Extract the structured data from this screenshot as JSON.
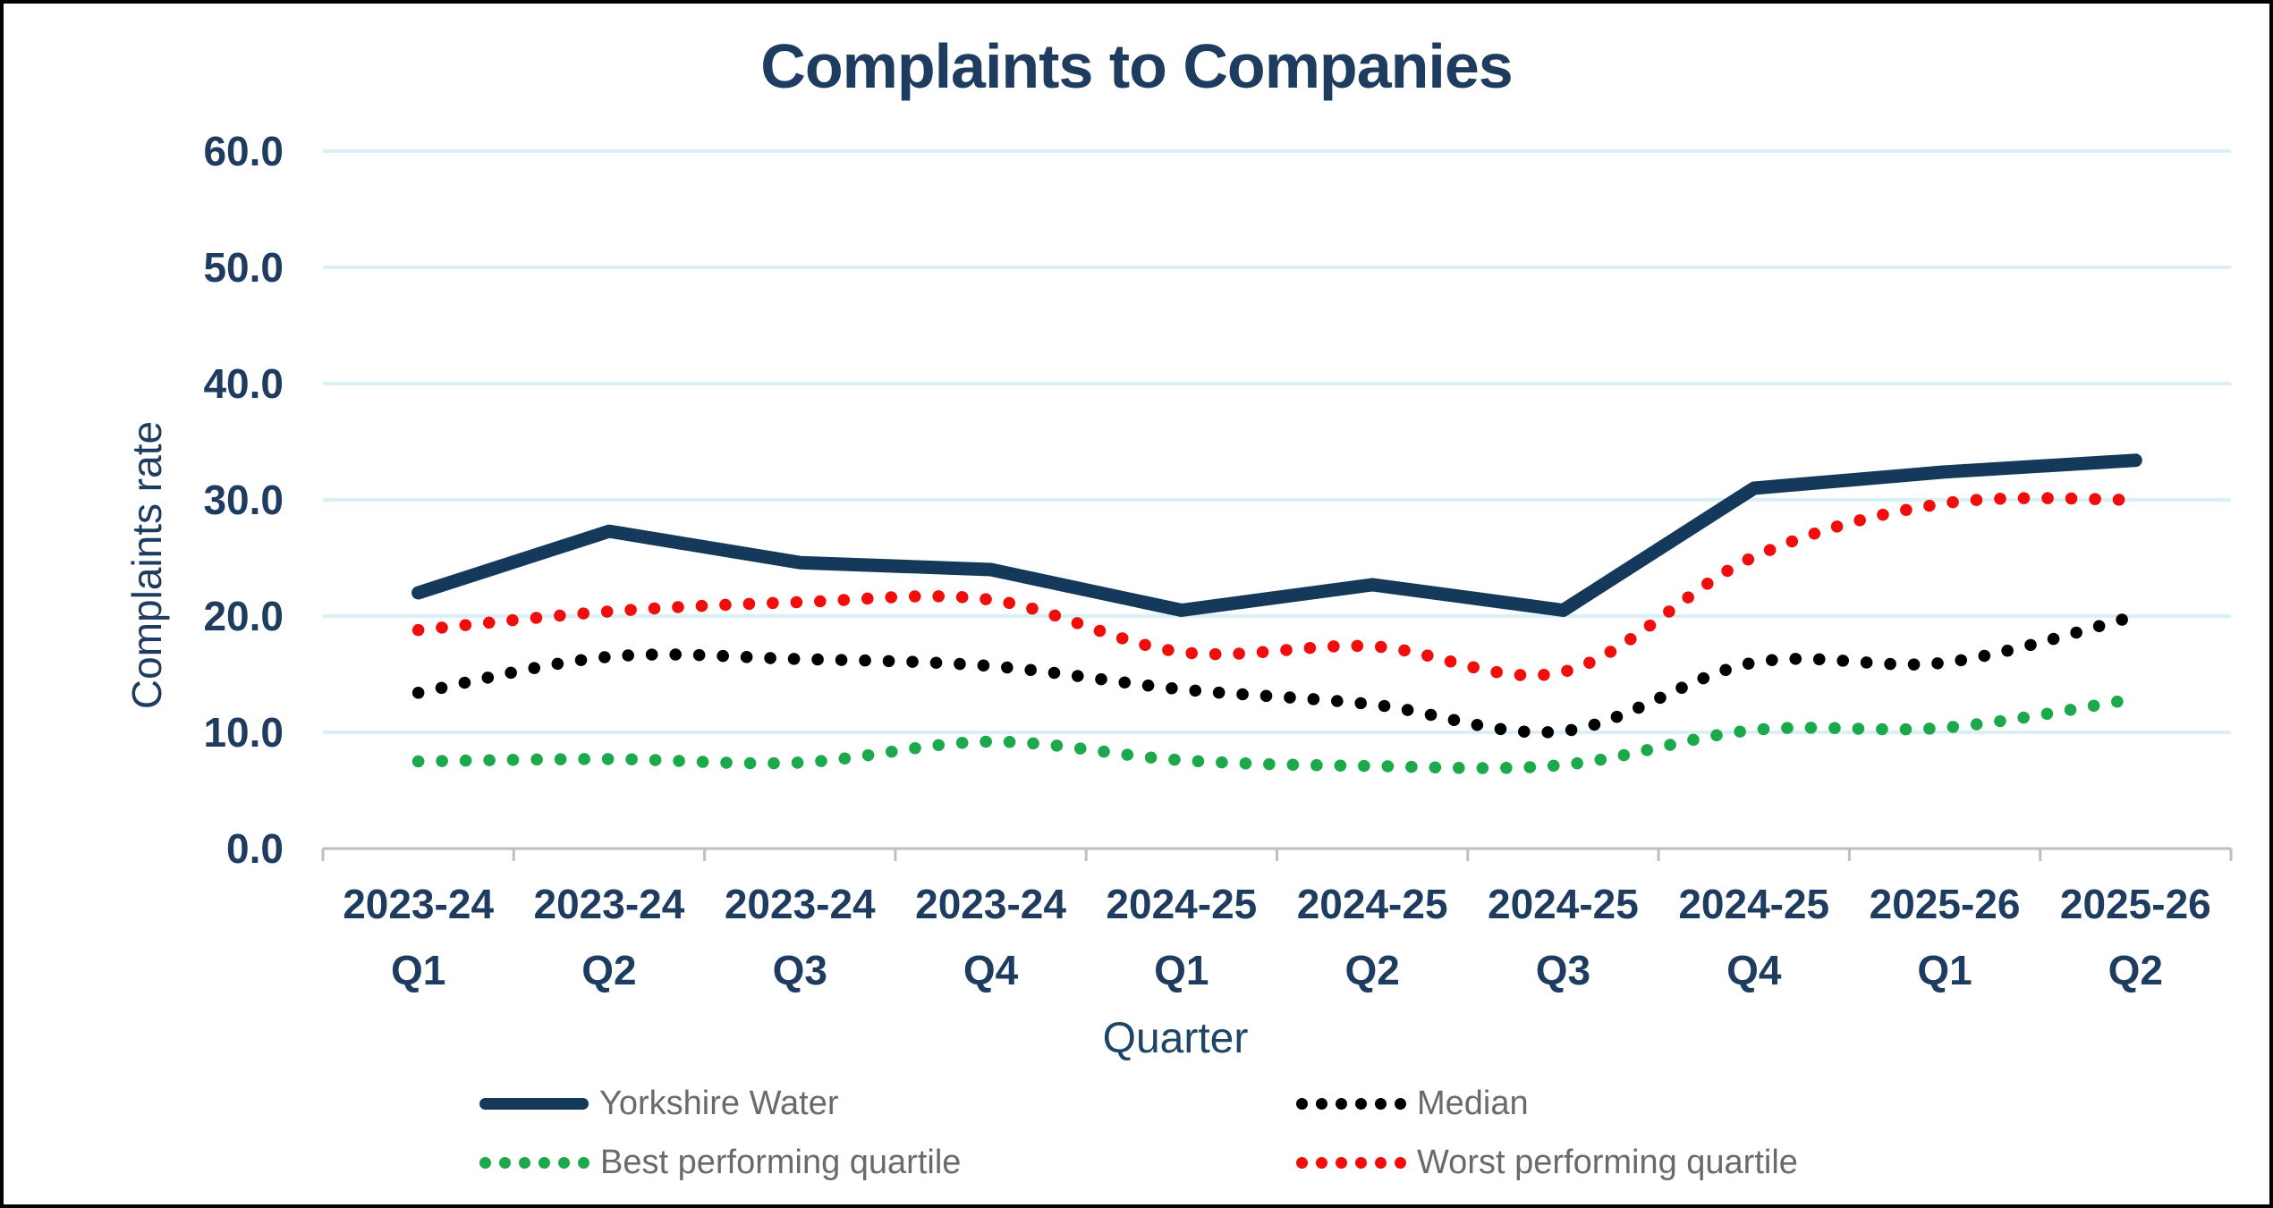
{
  "title": "Complaints to Companies",
  "axes": {
    "y_title": "Complaints rate",
    "x_title": "Quarter",
    "y_ticks": [
      "60.0",
      "50.0",
      "40.0",
      "30.0",
      "20.0",
      "10.0",
      "0.0"
    ]
  },
  "legend": {
    "items": [
      {
        "label": "Yorkshire Water",
        "style": "solid",
        "color": "#14395B"
      },
      {
        "label": "Median",
        "style": "dotted",
        "color": "#000000"
      },
      {
        "label": "Best performing quartile",
        "style": "dotted",
        "color": "#1BA94C"
      },
      {
        "label": "Worst performing quartile",
        "style": "dotted",
        "color": "#F20D0D"
      }
    ]
  },
  "chart_data": {
    "type": "line",
    "title": "Complaints to Companies",
    "xlabel": "Quarter",
    "ylabel": "Complaints rate",
    "ylim": [
      0,
      60
    ],
    "y_tick_step": 10,
    "grid": "horizontal",
    "legend_position": "bottom",
    "categories": [
      {
        "year": "2023-24",
        "quarter": "Q1"
      },
      {
        "year": "2023-24",
        "quarter": "Q2"
      },
      {
        "year": "2023-24",
        "quarter": "Q3"
      },
      {
        "year": "2023-24",
        "quarter": "Q4"
      },
      {
        "year": "2024-25",
        "quarter": "Q1"
      },
      {
        "year": "2024-25",
        "quarter": "Q2"
      },
      {
        "year": "2024-25",
        "quarter": "Q3"
      },
      {
        "year": "2024-25",
        "quarter": "Q4"
      },
      {
        "year": "2025-26",
        "quarter": "Q1"
      },
      {
        "year": "2025-26",
        "quarter": "Q2"
      }
    ],
    "series": [
      {
        "name": "Yorkshire Water",
        "color": "#14395B",
        "line_style": "solid",
        "values": [
          22.0,
          27.3,
          24.6,
          24.0,
          20.5,
          22.7,
          20.5,
          31.0,
          32.4,
          33.4
        ]
      },
      {
        "name": "Median",
        "color": "#000000",
        "line_style": "dotted",
        "values": [
          13.4,
          16.5,
          16.3,
          15.7,
          13.7,
          12.4,
          10.1,
          16.0,
          16.0,
          20.0
        ]
      },
      {
        "name": "Best performing quartile",
        "color": "#1BA94C",
        "line_style": "dotted",
        "values": [
          7.5,
          7.7,
          7.4,
          9.2,
          7.6,
          7.1,
          7.2,
          10.2,
          10.4,
          12.9
        ]
      },
      {
        "name": "Worst performing quartile",
        "color": "#F20D0D",
        "line_style": "dotted",
        "values": [
          18.8,
          20.4,
          21.2,
          21.4,
          16.9,
          17.4,
          15.2,
          25.1,
          29.7,
          30.0
        ]
      }
    ]
  },
  "colors": {
    "gridline": "#D9F0F6",
    "axis_line": "#BFBFBF",
    "title_text": "#1E3C5F",
    "tick_text": "#1E3C5F",
    "legend_text": "#6A6A6A",
    "background": "#FFFFFF",
    "border": "#000000"
  }
}
